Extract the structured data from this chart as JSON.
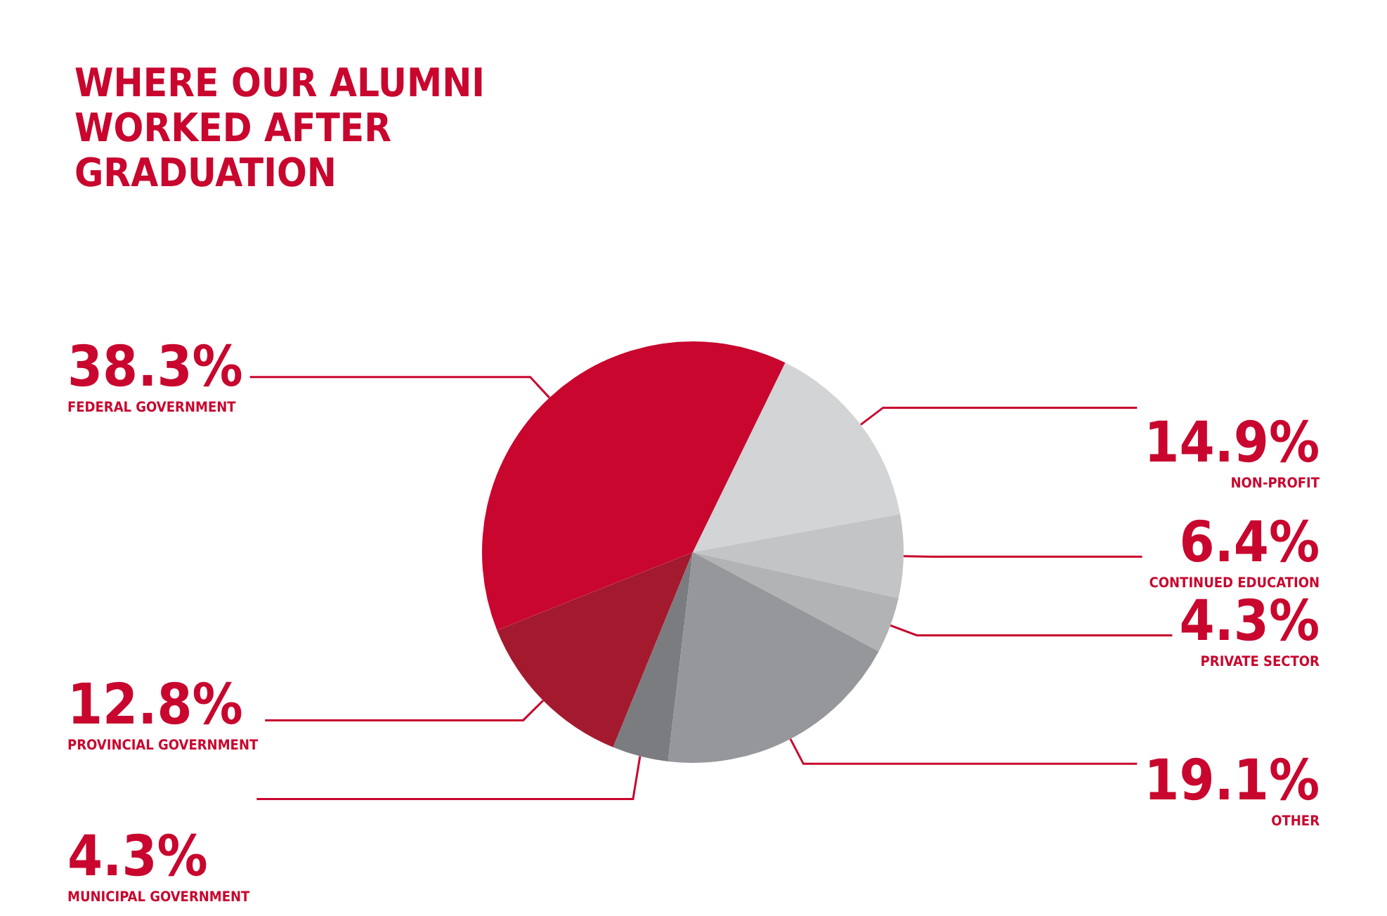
{
  "chart_data": {
    "type": "pie",
    "title": "WHERE OUR ALUMNI WORKED AFTER GRADUATION",
    "categories": [
      "NON-PROFIT",
      "CONTINUED EDUCATION",
      "PRIVATE SECTOR",
      "OTHER",
      "MUNICIPAL GOVERNMENT",
      "PROVINCIAL GOVERNMENT",
      "FEDERAL GOVERNMENT"
    ],
    "values": [
      14.9,
      6.4,
      4.3,
      19.1,
      4.3,
      12.8,
      38.3
    ],
    "colors": [
      "#d3d4d6",
      "#c3c4c6",
      "#b2b3b5",
      "#96979a",
      "#7b7c7f",
      "#a31a2e",
      "#c8062e"
    ],
    "value_labels": [
      "14.9%",
      "6.4%",
      "4.3%",
      "19.1%",
      "4.3%",
      "12.8%",
      "38.3%"
    ]
  }
}
